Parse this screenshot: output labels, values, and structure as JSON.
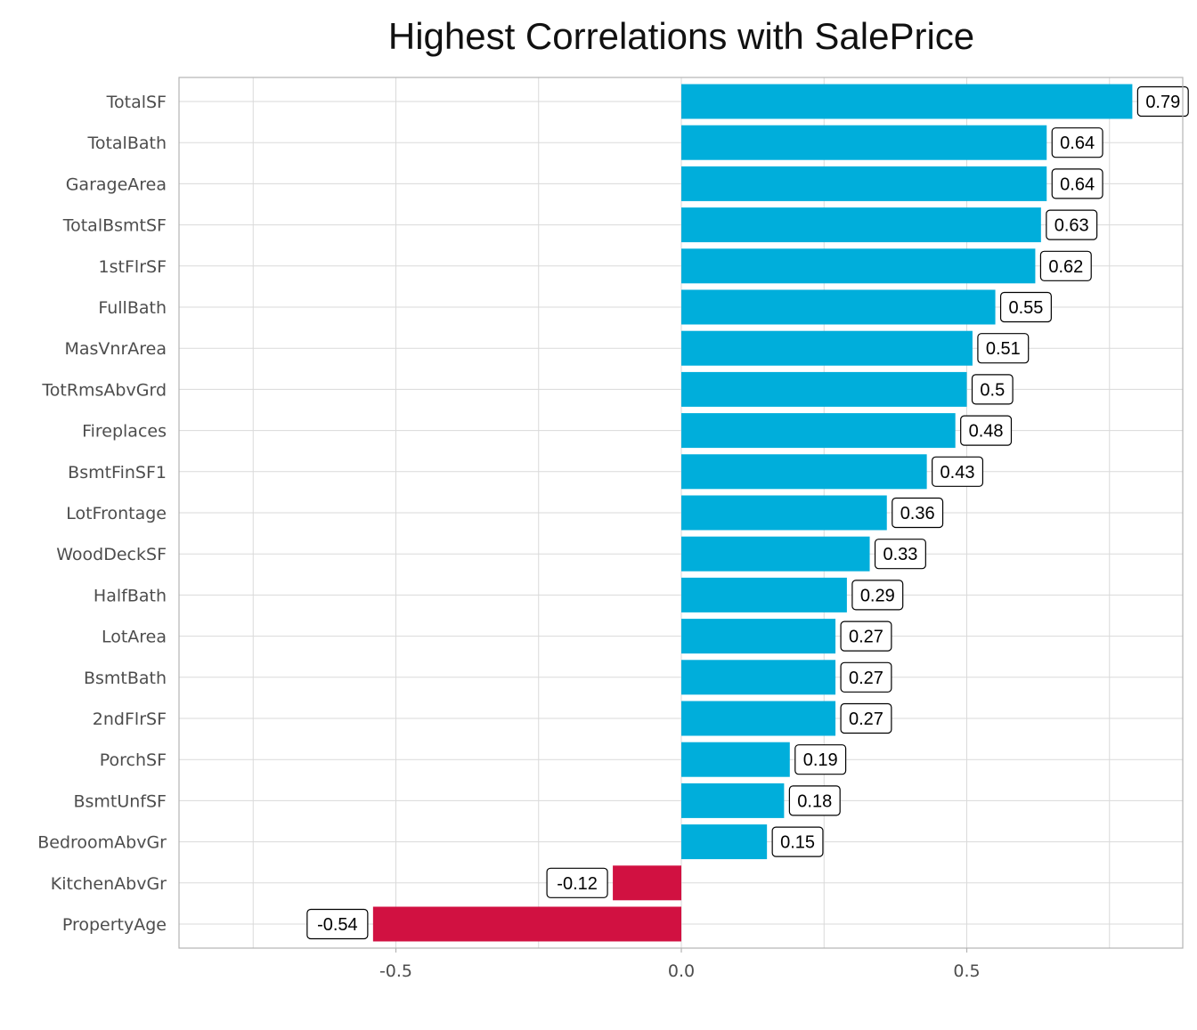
{
  "chart_data": {
    "type": "bar",
    "orientation": "horizontal",
    "title": "Highest Correlations with SalePrice",
    "xlabel": "",
    "ylabel": "",
    "xlim": [
      -0.88,
      0.88
    ],
    "x_ticks": [
      -0.5,
      0.0,
      0.5
    ],
    "x_tick_labels": [
      "-0.5",
      "0.0",
      "0.5"
    ],
    "grid": true,
    "legend": "none",
    "colors": {
      "positive": "#00AEDB",
      "negative": "#D11141"
    },
    "categories": [
      "TotalSF",
      "TotalBath",
      "GarageArea",
      "TotalBsmtSF",
      "1stFlrSF",
      "FullBath",
      "MasVnrArea",
      "TotRmsAbvGrd",
      "Fireplaces",
      "BsmtFinSF1",
      "LotFrontage",
      "WoodDeckSF",
      "HalfBath",
      "LotArea",
      "BsmtBath",
      "2ndFlrSF",
      "PorchSF",
      "BsmtUnfSF",
      "BedroomAbvGr",
      "KitchenAbvGr",
      "PropertyAge"
    ],
    "values": [
      0.79,
      0.64,
      0.64,
      0.63,
      0.62,
      0.55,
      0.51,
      0.5,
      0.48,
      0.43,
      0.36,
      0.33,
      0.29,
      0.27,
      0.27,
      0.27,
      0.19,
      0.18,
      0.15,
      -0.12,
      -0.54
    ],
    "data_labels": [
      "0.79",
      "0.64",
      "0.64",
      "0.63",
      "0.62",
      "0.55",
      "0.51",
      "0.5",
      "0.48",
      "0.43",
      "0.36",
      "0.33",
      "0.29",
      "0.27",
      "0.27",
      "0.27",
      "0.19",
      "0.18",
      "0.15",
      "-0.12",
      "-0.54"
    ]
  }
}
